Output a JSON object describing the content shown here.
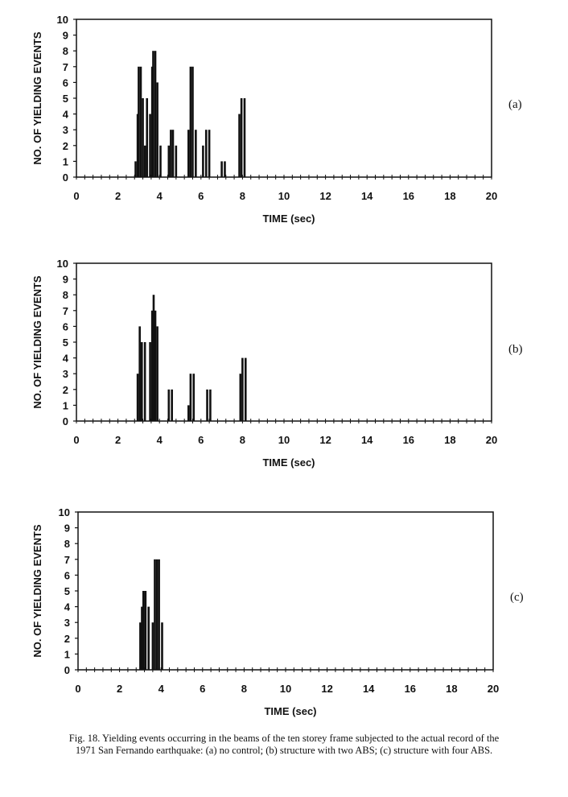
{
  "chart_data": [
    {
      "type": "bar",
      "panel_label": "(a)",
      "xlabel": "TIME (sec)",
      "ylabel": "NO. OF YIELDING EVENTS",
      "xlim": [
        0,
        20
      ],
      "ylim": [
        0,
        10
      ],
      "x_ticks": [
        0,
        2,
        4,
        6,
        8,
        10,
        12,
        14,
        16,
        18,
        20
      ],
      "y_ticks": [
        0,
        1,
        2,
        3,
        4,
        5,
        6,
        7,
        8,
        9,
        10
      ],
      "grid": false,
      "bars": [
        {
          "x": 2.85,
          "y": 1
        },
        {
          "x": 2.95,
          "y": 4
        },
        {
          "x": 3.0,
          "y": 7
        },
        {
          "x": 3.1,
          "y": 7
        },
        {
          "x": 3.2,
          "y": 5
        },
        {
          "x": 3.3,
          "y": 2
        },
        {
          "x": 3.4,
          "y": 5
        },
        {
          "x": 3.55,
          "y": 4
        },
        {
          "x": 3.65,
          "y": 7
        },
        {
          "x": 3.7,
          "y": 8
        },
        {
          "x": 3.8,
          "y": 8
        },
        {
          "x": 3.9,
          "y": 6
        },
        {
          "x": 4.05,
          "y": 2
        },
        {
          "x": 4.45,
          "y": 2
        },
        {
          "x": 4.55,
          "y": 3
        },
        {
          "x": 4.65,
          "y": 3
        },
        {
          "x": 4.8,
          "y": 2
        },
        {
          "x": 5.4,
          "y": 3
        },
        {
          "x": 5.5,
          "y": 7
        },
        {
          "x": 5.6,
          "y": 7
        },
        {
          "x": 5.75,
          "y": 3
        },
        {
          "x": 6.1,
          "y": 2
        },
        {
          "x": 6.25,
          "y": 3
        },
        {
          "x": 6.4,
          "y": 3
        },
        {
          "x": 7.0,
          "y": 1
        },
        {
          "x": 7.15,
          "y": 1
        },
        {
          "x": 7.85,
          "y": 4
        },
        {
          "x": 7.95,
          "y": 5
        },
        {
          "x": 8.1,
          "y": 5
        }
      ]
    },
    {
      "type": "bar",
      "panel_label": "(b)",
      "xlabel": "TIME (sec)",
      "ylabel": "NO. OF YIELDING EVENTS",
      "xlim": [
        0,
        20
      ],
      "ylim": [
        0,
        10
      ],
      "x_ticks": [
        0,
        2,
        4,
        6,
        8,
        10,
        12,
        14,
        16,
        18,
        20
      ],
      "y_ticks": [
        0,
        1,
        2,
        3,
        4,
        5,
        6,
        7,
        8,
        9,
        10
      ],
      "grid": false,
      "bars": [
        {
          "x": 2.95,
          "y": 3
        },
        {
          "x": 3.05,
          "y": 6
        },
        {
          "x": 3.15,
          "y": 5
        },
        {
          "x": 3.3,
          "y": 5
        },
        {
          "x": 3.55,
          "y": 5
        },
        {
          "x": 3.65,
          "y": 7
        },
        {
          "x": 3.72,
          "y": 8
        },
        {
          "x": 3.8,
          "y": 7
        },
        {
          "x": 3.9,
          "y": 6
        },
        {
          "x": 4.45,
          "y": 2
        },
        {
          "x": 4.6,
          "y": 2
        },
        {
          "x": 5.4,
          "y": 1
        },
        {
          "x": 5.5,
          "y": 3
        },
        {
          "x": 5.65,
          "y": 3
        },
        {
          "x": 6.3,
          "y": 2
        },
        {
          "x": 6.45,
          "y": 2
        },
        {
          "x": 7.9,
          "y": 3
        },
        {
          "x": 8.0,
          "y": 4
        },
        {
          "x": 8.15,
          "y": 4
        }
      ]
    },
    {
      "type": "bar",
      "panel_label": "(c)",
      "xlabel": "TIME (sec)",
      "ylabel": "NO. OF YIELDING EVENTS",
      "xlim": [
        0,
        20
      ],
      "ylim": [
        0,
        10
      ],
      "x_ticks": [
        0,
        2,
        4,
        6,
        8,
        10,
        12,
        14,
        16,
        18,
        20
      ],
      "y_ticks": [
        0,
        1,
        2,
        3,
        4,
        5,
        6,
        7,
        8,
        9,
        10
      ],
      "grid": false,
      "bars": [
        {
          "x": 3.0,
          "y": 3
        },
        {
          "x": 3.08,
          "y": 4
        },
        {
          "x": 3.15,
          "y": 5
        },
        {
          "x": 3.25,
          "y": 5
        },
        {
          "x": 3.4,
          "y": 4
        },
        {
          "x": 3.6,
          "y": 3
        },
        {
          "x": 3.7,
          "y": 7
        },
        {
          "x": 3.8,
          "y": 7
        },
        {
          "x": 3.9,
          "y": 7
        },
        {
          "x": 4.05,
          "y": 3
        }
      ]
    }
  ],
  "caption": {
    "line1": "Fig. 18. Yielding events occurring in the beams of the ten storey frame subjected to the actual record of the",
    "line2": "1971 San Fernando earthquake: (a) no control; (b) structure with two ABS; (c) structure with four ABS."
  }
}
